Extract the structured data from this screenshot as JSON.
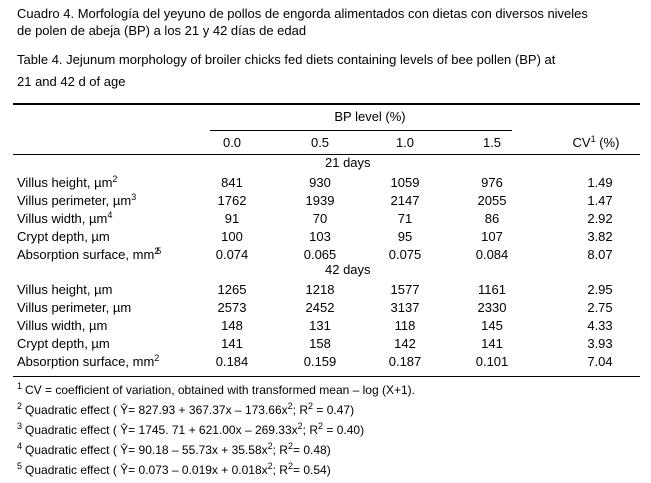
{
  "caption": {
    "es": [
      "Cuadro 4.  Morfología del yeyuno de pollos de engorda alimentados con dietas con diversos niveles",
      "de polen de abeja (BP) a los 21 y 42 días de edad"
    ],
    "en": [
      "Table 4. Jejunum morphology of broiler chicks fed diets containing levels of bee pollen (BP) at",
      "21 and 42 d of age"
    ]
  },
  "table": {
    "group_header": "BP level (%)",
    "columns": [
      "0.0",
      "0.5",
      "1.0",
      "1.5"
    ],
    "cv_header": {
      "text": "CV",
      "sup": "1",
      "after": " (%)"
    },
    "sections": [
      {
        "title": "21 days",
        "rows": [
          {
            "label": "Villus height, µm",
            "sup": "2",
            "cells": [
              "841",
              "930",
              "1059",
              "976",
              "1.49"
            ]
          },
          {
            "label": "Villus perimeter, µm",
            "sup": "3",
            "cells": [
              "1762",
              "1939",
              "2147",
              "2055",
              "1.47"
            ]
          },
          {
            "label": "Villus width, µm",
            "sup": "4",
            "cells": [
              "91",
              "70",
              "71",
              "86",
              "2.92"
            ]
          },
          {
            "label": "Crypt depth, µm",
            "cells": [
              "100",
              "103",
              "95",
              "107",
              "3.82"
            ]
          },
          {
            "label": "Absorption surface, mm",
            "sup": "2",
            "sup2": "5",
            "cells": [
              "0.074",
              "0.065",
              "0.075",
              "0.084",
              "8.07"
            ]
          }
        ]
      },
      {
        "title": "42 days",
        "rows": [
          {
            "label": "Villus height, µm",
            "cells": [
              "1265",
              "1218",
              "1577",
              "1161",
              "2.95"
            ]
          },
          {
            "label": "Villus perimeter, µm",
            "cells": [
              "2573",
              "2452",
              "3137",
              "2330",
              "2.75"
            ]
          },
          {
            "label": "Villus width, µm",
            "cells": [
              "148",
              "131",
              "118",
              "145",
              "4.33"
            ]
          },
          {
            "label": "Crypt depth, µm",
            "cells": [
              "141",
              "158",
              "142",
              "141",
              "3.93"
            ]
          },
          {
            "label": "Absorption surface, mm",
            "sup": "2",
            "cells": [
              "0.184",
              "0.159",
              "0.187",
              "0.101",
              "7.04"
            ]
          }
        ]
      }
    ]
  },
  "footnotes": [
    {
      "mark": "1",
      "parts": [
        "CV = coefficient of variation, obtained with transformed mean – log (X+1)."
      ]
    },
    {
      "mark": "2",
      "parts": [
        "Quadratic effect ( Ŷ= 827.93 + 367.37x – 173.66x",
        "2",
        "; R",
        "2",
        " = 0.47)"
      ]
    },
    {
      "mark": "3",
      "parts": [
        "Quadratic effect ( Ŷ= 1745. 71 + 621.00x – 269.33x",
        "2",
        "; R",
        "2",
        " = 0.40)"
      ]
    },
    {
      "mark": "4",
      "parts": [
        "Quadratic effect ( Ŷ= 90.18 – 55.73x + 35.58x",
        "2",
        "; R",
        "2",
        "= 0.48)"
      ]
    },
    {
      "mark": "5",
      "parts": [
        "Quadratic effect ( Ŷ= 0.073 – 0.019x + 0.018x",
        "2",
        "; R",
        "2",
        "= 0.54)"
      ]
    }
  ]
}
